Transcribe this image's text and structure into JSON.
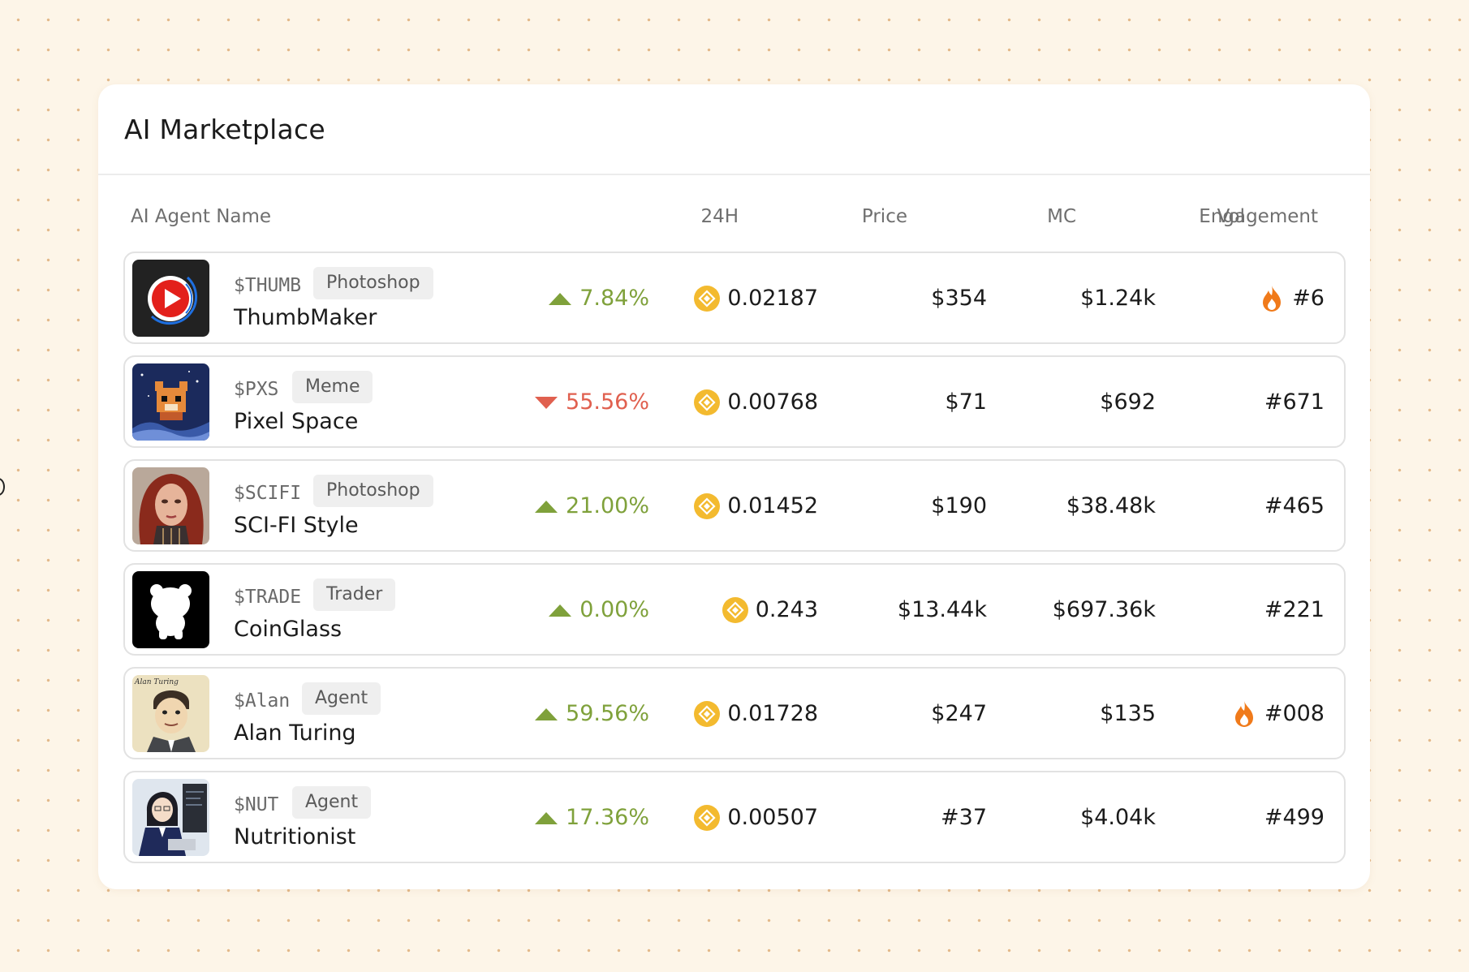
{
  "title": "AI Marketplace",
  "columns": {
    "name": "AI Agent Name",
    "change": "24H",
    "price": "Price",
    "mc": "MC",
    "vol": "Vol",
    "engagement": "Engagement"
  },
  "colors": {
    "positive": "#7fa13b",
    "negative": "#e0604f",
    "coin": "#f3ba2f",
    "flame": "#f07a1a"
  },
  "rows": [
    {
      "ticker": "$THUMB",
      "tag": "Photoshop",
      "name": "ThumbMaker",
      "change": "7.84%",
      "direction": "up",
      "price": "0.02187",
      "mc": "$354",
      "vol": "$1.24k",
      "engagement": "#6",
      "hot": true,
      "avatar_icon": "play-logo-icon"
    },
    {
      "ticker": "$PXS",
      "tag": "Meme",
      "name": "Pixel Space",
      "change": "55.56%",
      "direction": "down",
      "price": "0.00768",
      "mc": "$71",
      "vol": "$692",
      "engagement": "#671",
      "hot": false,
      "avatar_icon": "pixel-fox-icon"
    },
    {
      "ticker": "$SCIFI",
      "tag": "Photoshop",
      "name": "SCI-FI Style",
      "change": "21.00%",
      "direction": "up",
      "price": "0.01452",
      "mc": "$190",
      "vol": "$38.48k",
      "engagement": "#465",
      "hot": false,
      "avatar_icon": "scifi-portrait-icon"
    },
    {
      "ticker": "$TRADE",
      "tag": "Trader",
      "name": "CoinGlass",
      "change": "0.00%",
      "direction": "up",
      "price": "0.243",
      "mc": "$13.44k",
      "vol": "$697.36k",
      "engagement": "#221",
      "hot": false,
      "avatar_icon": "bear-logo-icon"
    },
    {
      "ticker": "$Alan",
      "tag": "Agent",
      "name": "Alan Turing",
      "change": "59.56%",
      "direction": "up",
      "price": "0.01728",
      "mc": "$247",
      "vol": "$135",
      "engagement": "#008",
      "hot": true,
      "avatar_icon": "alan-caricature-icon",
      "avatar_caption": "Alan Turing"
    },
    {
      "ticker": "$NUT",
      "tag": "Agent",
      "name": "Nutritionist",
      "change": "17.36%",
      "direction": "up",
      "price": "0.00507",
      "mc": "#37",
      "vol": "$4.04k",
      "engagement": "#499",
      "hot": false,
      "avatar_icon": "anime-girl-icon"
    }
  ]
}
